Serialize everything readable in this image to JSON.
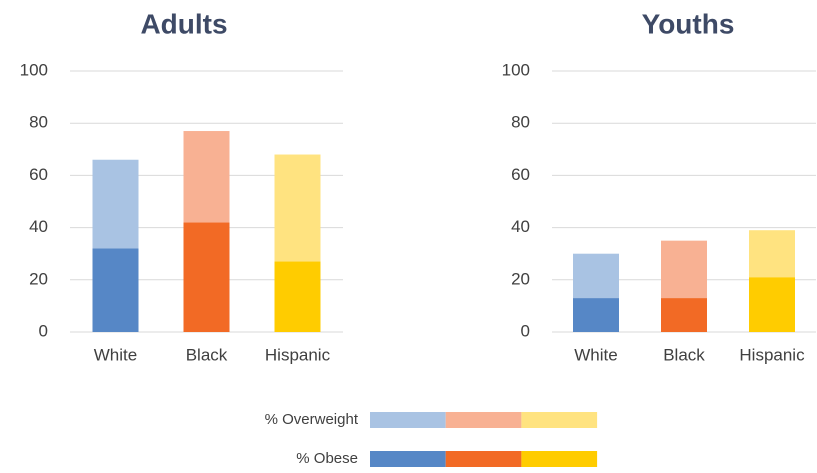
{
  "chart_data": [
    {
      "type": "bar",
      "stacked": true,
      "title": "Adults",
      "categories": [
        "White",
        "Black",
        "Hispanic"
      ],
      "series": [
        {
          "name": "% Obese",
          "colors": [
            "#5687c6",
            "#f26a25",
            "#ffcc00"
          ],
          "values": [
            32,
            42,
            27
          ]
        },
        {
          "name": "% Overweight",
          "colors": [
            "#a9c3e3",
            "#f8b193",
            "#ffe380"
          ],
          "values": [
            34,
            35,
            41
          ]
        }
      ],
      "ylim": [
        0,
        100
      ],
      "yticks": [
        0,
        20,
        40,
        60,
        80,
        100
      ],
      "grid": true
    },
    {
      "type": "bar",
      "stacked": true,
      "title": "Youths",
      "categories": [
        "White",
        "Black",
        "Hispanic"
      ],
      "series": [
        {
          "name": "% Obese",
          "colors": [
            "#5687c6",
            "#f26a25",
            "#ffcc00"
          ],
          "values": [
            13,
            13,
            21
          ]
        },
        {
          "name": "% Overweight",
          "colors": [
            "#a9c3e3",
            "#f8b193",
            "#ffe380"
          ],
          "values": [
            17,
            22,
            18
          ]
        }
      ],
      "ylim": [
        0,
        100
      ],
      "yticks": [
        0,
        20,
        40,
        60,
        80,
        100
      ],
      "grid": true
    }
  ]
}
